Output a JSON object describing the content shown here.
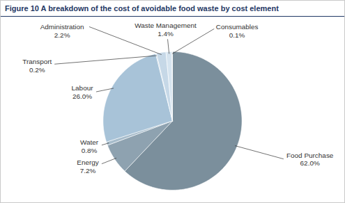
{
  "chart_data": {
    "type": "pie",
    "title": "Figure 10 A breakdown of the cost of avoidable food waste by cost element",
    "categories": [
      "Food Purchase",
      "Energy",
      "Water",
      "Labour",
      "Transport",
      "Administration",
      "Waste Management",
      "Consumables"
    ],
    "values": [
      62.0,
      7.2,
      0.8,
      26.0,
      0.2,
      2.2,
      1.4,
      0.1
    ],
    "value_labels": [
      "62.0%",
      "7.2%",
      "0.8%",
      "26.0%",
      "0.2%",
      "2.2%",
      "1.4%",
      "0.1%"
    ],
    "colors": [
      "#7b8f9c",
      "#8ea2b0",
      "#a7bccb",
      "#a8c3d8",
      "#b9cfe0",
      "#c6d8e7",
      "#d6e4ef",
      "#e3edf4"
    ],
    "data_labels": true
  }
}
